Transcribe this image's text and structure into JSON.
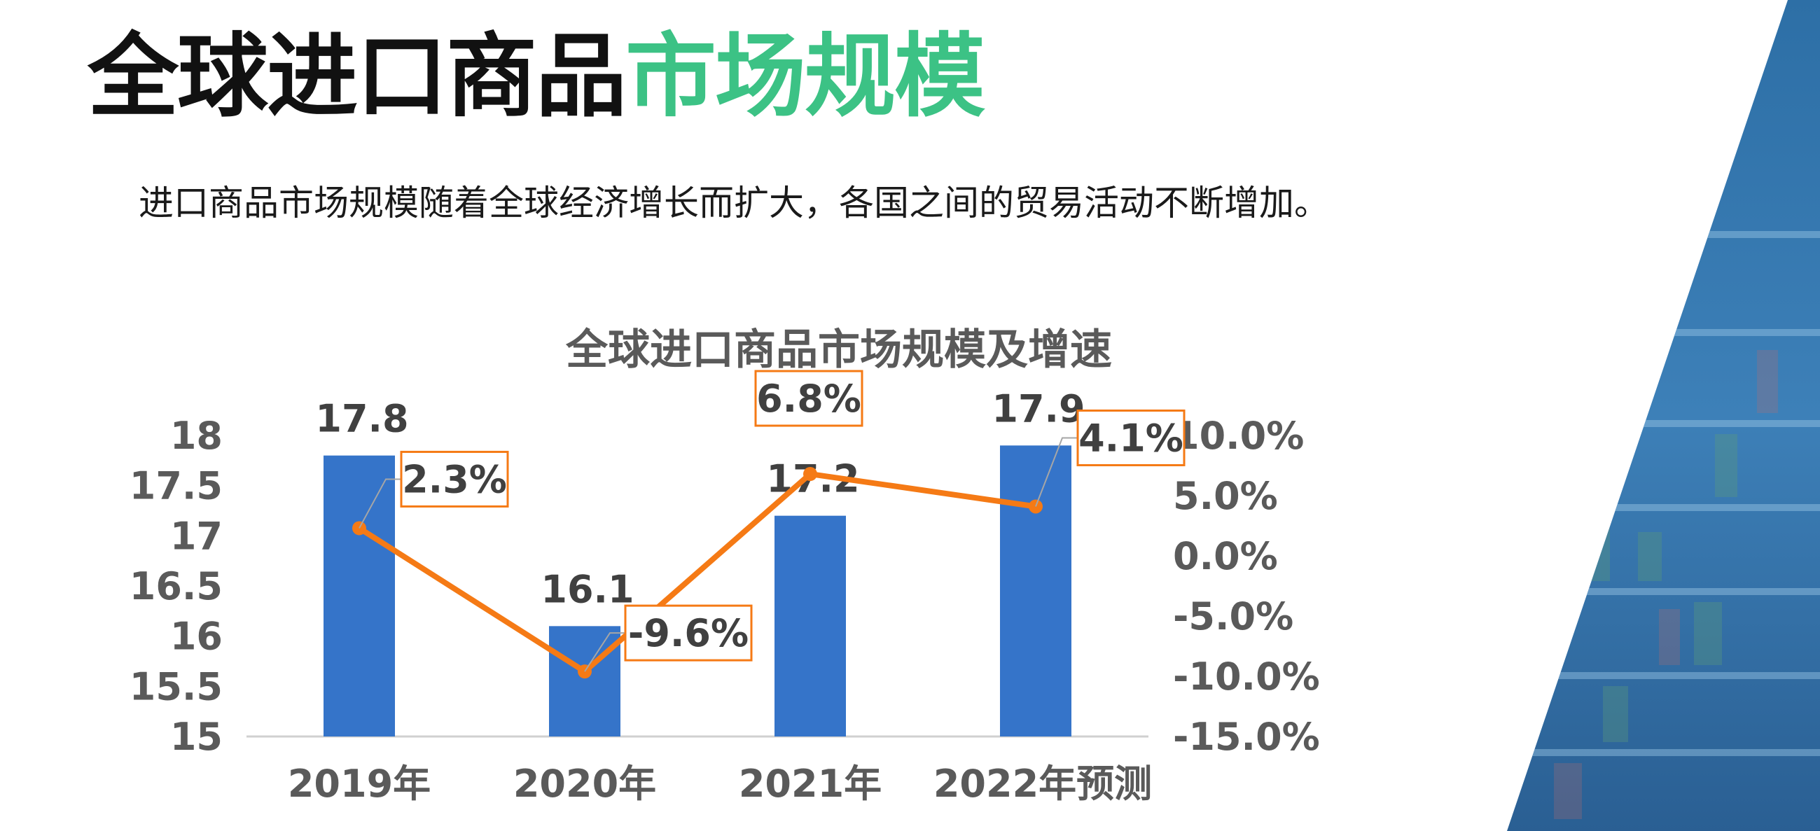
{
  "header": {
    "title_part1": "全球进口商品",
    "title_part2": "市场规模",
    "subtitle": "进口商品市场规模随着全球经济增长而扩大，各国之间的贸易活动不断增加。"
  },
  "colors": {
    "title_dark": "#111111",
    "title_green": "#3cc285",
    "bar": "#3574c9",
    "line": "#f57a15",
    "axis_text": "#5a5a5a",
    "label_text": "#404040"
  },
  "chart_data": {
    "type": "bar",
    "title": "全球进口商品市场规模及增速",
    "categories": [
      "2019年",
      "2020年",
      "2021年",
      "2022年预测"
    ],
    "series": [
      {
        "values": [
          17.8,
          16.1,
          17.2,
          17.9
        ],
        "labels": [
          "17.8",
          "16.1",
          "17.2",
          "17.9"
        ],
        "axis": "left",
        "kind": "bar"
      },
      {
        "values": [
          2.3,
          -9.6,
          6.8,
          4.1
        ],
        "labels": [
          "2.3%",
          "-9.6%",
          "6.8%",
          "4.1%"
        ],
        "axis": "right",
        "kind": "line"
      }
    ],
    "y_left": {
      "min": 15,
      "max": 18,
      "ticks": [
        "15",
        "15.5",
        "16",
        "16.5",
        "17",
        "17.5",
        "18"
      ]
    },
    "y_right": {
      "min": -15,
      "max": 10,
      "ticks": [
        "-15.0%",
        "-10.0%",
        "-5.0%",
        "0.0%",
        "5.0%",
        "10.0%"
      ]
    },
    "grid": false,
    "legend": "none"
  }
}
